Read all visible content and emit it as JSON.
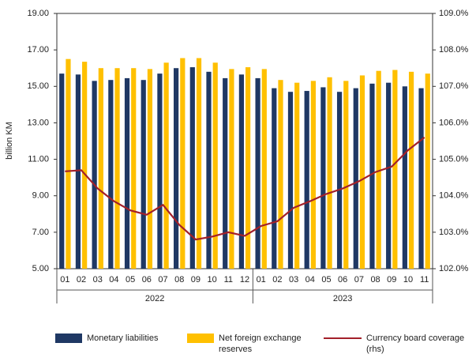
{
  "chart_data": {
    "type": "bar",
    "y_label": "billion KM",
    "categories": [
      "01",
      "02",
      "03",
      "04",
      "05",
      "06",
      "07",
      "08",
      "09",
      "10",
      "11",
      "12",
      "01",
      "02",
      "03",
      "04",
      "05",
      "06",
      "07",
      "08",
      "09",
      "10",
      "11"
    ],
    "groups": [
      {
        "label": "2022",
        "count": 12
      },
      {
        "label": "2023",
        "count": 11
      }
    ],
    "series": [
      {
        "name": "Monetary liabilities",
        "color": "#1f3864",
        "type": "bar",
        "values": [
          15.7,
          15.65,
          15.3,
          15.35,
          15.45,
          15.35,
          15.7,
          16.0,
          16.05,
          15.8,
          15.45,
          15.65,
          15.45,
          14.9,
          14.7,
          14.75,
          14.95,
          14.7,
          14.9,
          15.15,
          15.2,
          15.0,
          14.9
        ]
      },
      {
        "name": "Net foreign exchange reserves",
        "color": "#ffc000",
        "type": "bar",
        "values": [
          16.5,
          16.35,
          16.0,
          16.0,
          16.0,
          15.95,
          16.3,
          16.55,
          16.55,
          16.3,
          15.95,
          16.05,
          15.95,
          15.35,
          15.2,
          15.3,
          15.5,
          15.3,
          15.6,
          15.85,
          15.9,
          15.8,
          15.7
        ]
      },
      {
        "name": "Currency board coverage (rhs)",
        "color": "#a3202a",
        "type": "line",
        "axis": "y2",
        "values": [
          104.67,
          104.7,
          104.2,
          103.85,
          103.6,
          103.48,
          103.75,
          103.2,
          102.8,
          102.88,
          103.0,
          102.9,
          103.17,
          103.3,
          103.67,
          103.85,
          104.05,
          104.2,
          104.4,
          104.65,
          104.8,
          105.25,
          105.6
        ]
      }
    ],
    "ylim": [
      5,
      19
    ],
    "yticks": [
      {
        "value": 5,
        "label": "5.00"
      },
      {
        "value": 7,
        "label": "7.00"
      },
      {
        "value": 9,
        "label": "9.00"
      },
      {
        "value": 11,
        "label": "11.00"
      },
      {
        "value": 13,
        "label": "13.00"
      },
      {
        "value": 15,
        "label": "15.00"
      },
      {
        "value": 17,
        "label": "17.00"
      },
      {
        "value": 19,
        "label": "19.00"
      }
    ],
    "y2lim": [
      102,
      109
    ],
    "y2ticks": [
      {
        "value": 102,
        "label": "102.0%"
      },
      {
        "value": 103,
        "label": "103.0%"
      },
      {
        "value": 104,
        "label": "104.0%"
      },
      {
        "value": 105,
        "label": "105.0%"
      },
      {
        "value": 106,
        "label": "106.0%"
      },
      {
        "value": 107,
        "label": "107.0%"
      },
      {
        "value": 108,
        "label": "108.0%"
      },
      {
        "value": 109,
        "label": "109.0%"
      }
    ],
    "legend": "bottom"
  }
}
